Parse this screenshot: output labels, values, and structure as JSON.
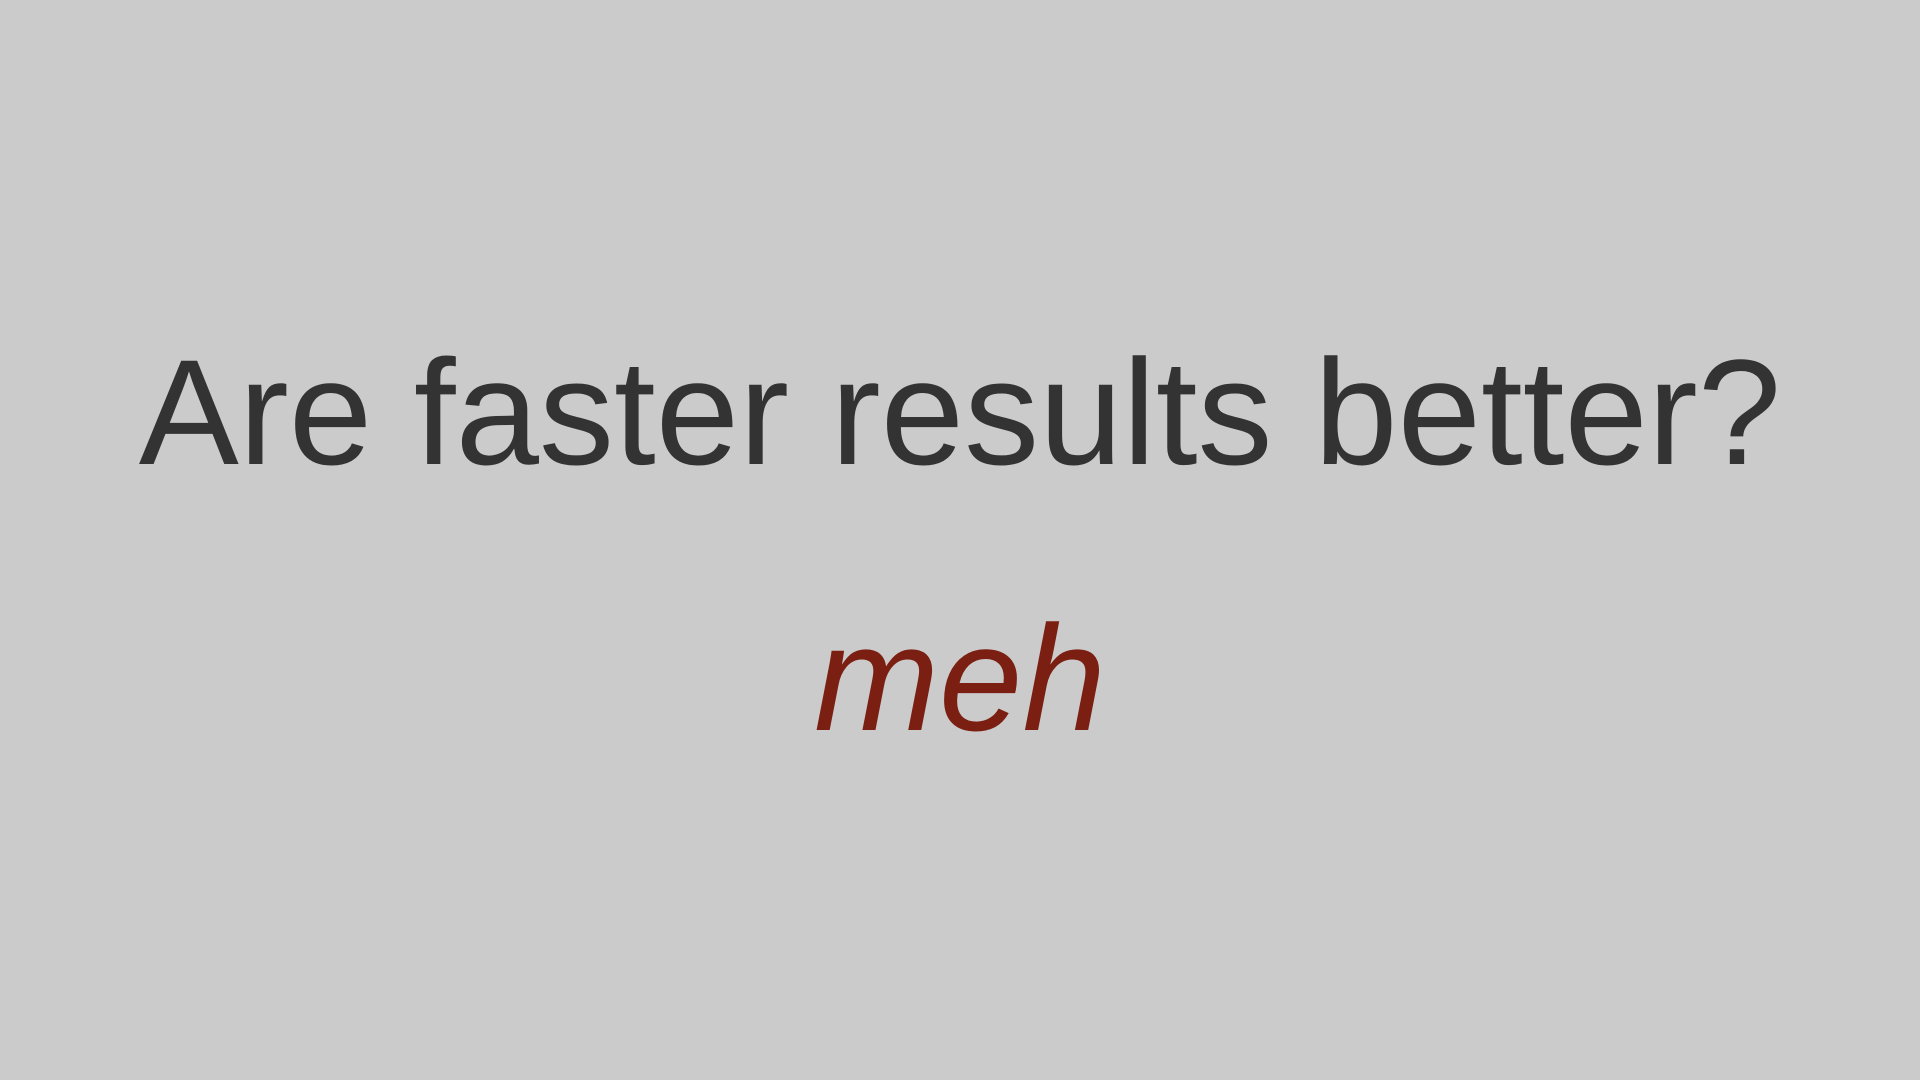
{
  "slide": {
    "title": "Are faster results better?",
    "answer": "meh"
  },
  "colors": {
    "background": "#cbcbcb",
    "title_text": "#333333",
    "answer_text": "#7a1f12"
  }
}
